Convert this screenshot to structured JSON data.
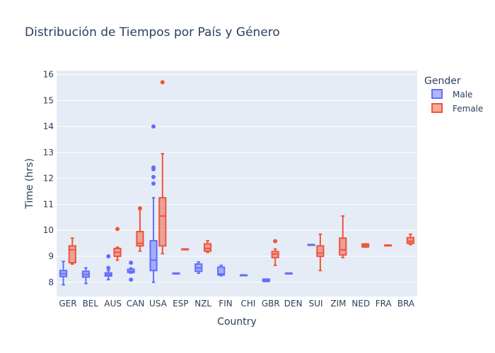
{
  "chart_data": {
    "type": "box",
    "title": "Distribución de Tiempos por País y Género",
    "xlabel": "Country",
    "ylabel": "Time (hrs)",
    "ylim": [
      7.45,
      16.15
    ],
    "yticks": [
      8,
      9,
      10,
      11,
      12,
      13,
      14,
      15,
      16
    ],
    "grid": true,
    "legend_position": "right",
    "legend_title": "Gender",
    "categories": [
      "GER",
      "BEL",
      "AUS",
      "CAN",
      "USA",
      "ESP",
      "NZL",
      "FIN",
      "CHI",
      "GBR",
      "DEN",
      "SUI",
      "ZIM",
      "NED",
      "FRA",
      "BRA"
    ],
    "series": [
      {
        "name": "Male",
        "color": "#636efa",
        "boxes": [
          {
            "category": "GER",
            "min": 7.9,
            "q1": 8.22,
            "median": 8.33,
            "q3": 8.45,
            "max": 8.8,
            "outliers": []
          },
          {
            "category": "BEL",
            "min": 7.95,
            "q1": 8.2,
            "median": 8.3,
            "q3": 8.42,
            "max": 8.55,
            "outliers": []
          },
          {
            "category": "AUS",
            "min": 8.1,
            "q1": 8.24,
            "median": 8.3,
            "q3": 8.36,
            "max": 8.45,
            "outliers": [
              8.55,
              9.0
            ]
          },
          {
            "category": "CAN",
            "min": 8.35,
            "q1": 8.38,
            "median": 8.42,
            "q3": 8.5,
            "max": 8.55,
            "outliers": [
              8.1,
              8.75
            ]
          },
          {
            "category": "USA",
            "min": 8.0,
            "q1": 8.45,
            "median": 8.85,
            "q3": 9.6,
            "max": 11.25,
            "outliers": [
              11.8,
              12.05,
              12.35,
              12.42,
              14.0
            ]
          },
          {
            "category": "ESP",
            "min": 8.35,
            "q1": 8.35,
            "median": 8.35,
            "q3": 8.35,
            "max": 8.35,
            "outliers": []
          },
          {
            "category": "NZL",
            "min": 8.35,
            "q1": 8.42,
            "median": 8.55,
            "q3": 8.7,
            "max": 8.78,
            "outliers": []
          },
          {
            "category": "FIN",
            "min": 8.25,
            "q1": 8.28,
            "median": 8.32,
            "q3": 8.58,
            "max": 8.65,
            "outliers": []
          },
          {
            "category": "CHI",
            "min": 8.28,
            "q1": 8.28,
            "median": 8.28,
            "q3": 8.28,
            "max": 8.28,
            "outliers": []
          },
          {
            "category": "GBR",
            "min": 8.03,
            "q1": 8.03,
            "median": 8.08,
            "q3": 8.12,
            "max": 8.12,
            "outliers": []
          },
          {
            "category": "DEN",
            "min": 8.35,
            "q1": 8.35,
            "median": 8.35,
            "q3": 8.35,
            "max": 8.35,
            "outliers": []
          },
          {
            "category": "SUI",
            "min": 9.45,
            "q1": 9.45,
            "median": 9.45,
            "q3": 9.45,
            "max": 9.45,
            "outliers": []
          }
        ]
      },
      {
        "name": "Female",
        "color": "#ef553b",
        "boxes": [
          {
            "category": "GER",
            "min": 8.7,
            "q1": 8.75,
            "median": 9.25,
            "q3": 9.4,
            "max": 9.7,
            "outliers": []
          },
          {
            "category": "AUS",
            "min": 8.85,
            "q1": 9.0,
            "median": 9.15,
            "q3": 9.3,
            "max": 9.35,
            "outliers": [
              10.05
            ]
          },
          {
            "category": "CAN",
            "min": 9.2,
            "q1": 9.4,
            "median": 9.5,
            "q3": 9.95,
            "max": 10.8,
            "outliers": [
              10.85
            ]
          },
          {
            "category": "USA",
            "min": 9.1,
            "q1": 9.4,
            "median": 10.55,
            "q3": 11.25,
            "max": 12.95,
            "outliers": [
              15.7
            ]
          },
          {
            "category": "ESP",
            "min": 9.28,
            "q1": 9.28,
            "median": 9.28,
            "q3": 9.28,
            "max": 9.28,
            "outliers": []
          },
          {
            "category": "NZL",
            "min": 9.15,
            "q1": 9.2,
            "median": 9.3,
            "q3": 9.48,
            "max": 9.6,
            "outliers": []
          },
          {
            "category": "GBR",
            "min": 8.65,
            "q1": 8.95,
            "median": 9.08,
            "q3": 9.18,
            "max": 9.28,
            "outliers": [
              9.58
            ]
          },
          {
            "category": "SUI",
            "min": 8.45,
            "q1": 9.0,
            "median": 9.12,
            "q3": 9.4,
            "max": 9.85,
            "outliers": []
          },
          {
            "category": "ZIM",
            "min": 8.95,
            "q1": 9.05,
            "median": 9.25,
            "q3": 9.7,
            "max": 10.55,
            "outliers": []
          },
          {
            "category": "NED",
            "min": 9.35,
            "q1": 9.36,
            "median": 9.42,
            "q3": 9.47,
            "max": 9.48,
            "outliers": []
          },
          {
            "category": "FRA",
            "min": 9.43,
            "q1": 9.43,
            "median": 9.43,
            "q3": 9.43,
            "max": 9.43,
            "outliers": []
          },
          {
            "category": "BRA",
            "min": 9.45,
            "q1": 9.5,
            "median": 9.58,
            "q3": 9.72,
            "max": 9.85,
            "outliers": []
          }
        ]
      }
    ]
  }
}
